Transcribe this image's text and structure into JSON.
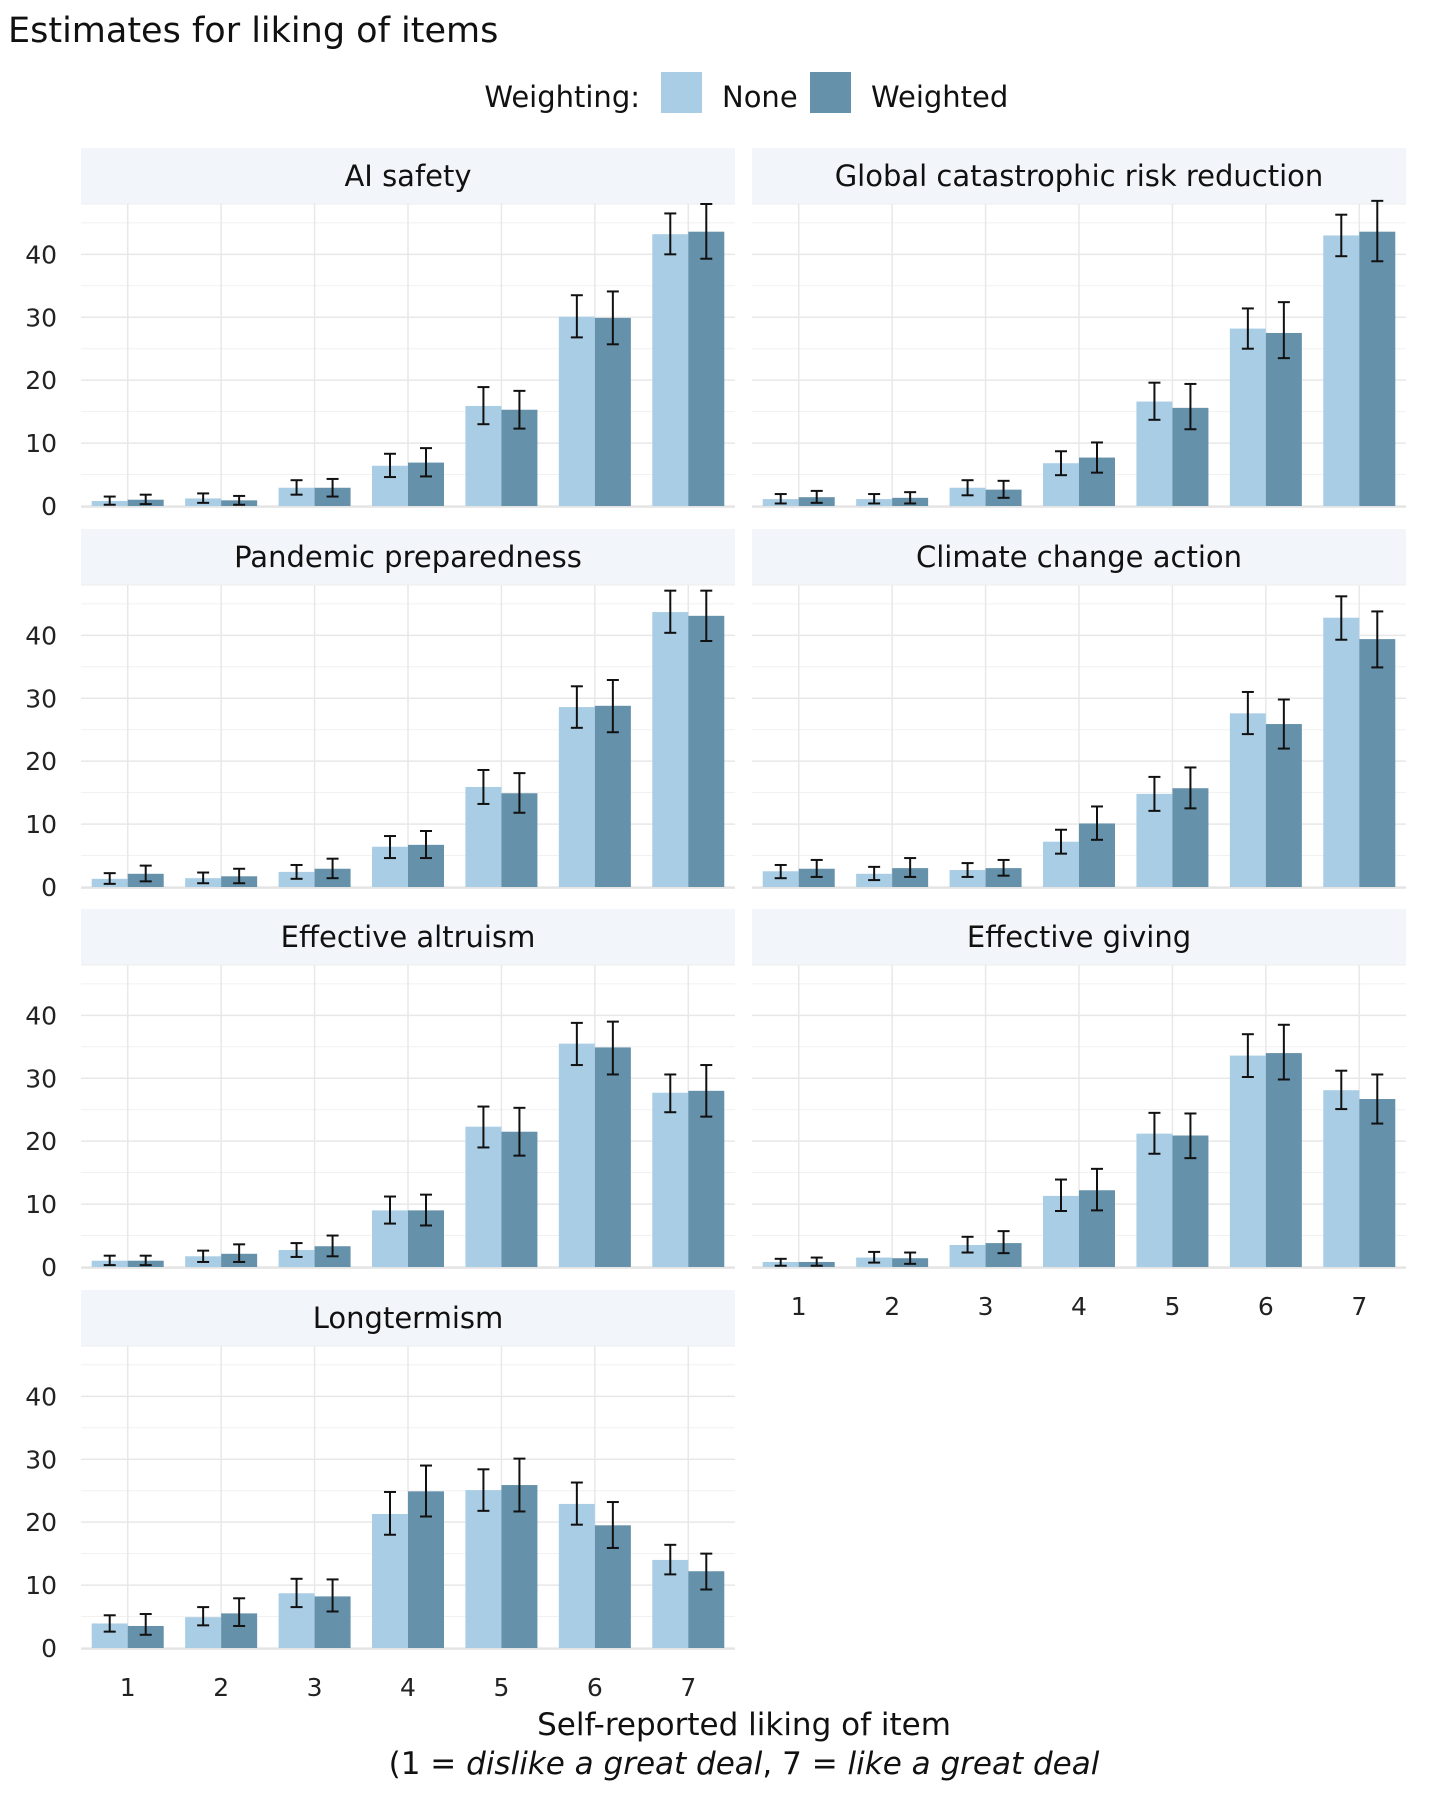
{
  "chart_data": {
    "type": "bar",
    "title": "Estimates for liking of items",
    "legend": {
      "title": "Weighting:",
      "position": "top-center",
      "entries": [
        {
          "name": "None",
          "color": "#a9cde4"
        },
        {
          "name": "Weighted",
          "color": "#6591ab"
        }
      ]
    },
    "categories": [
      "1",
      "2",
      "3",
      "4",
      "5",
      "6",
      "7"
    ],
    "ylim": [
      0,
      48
    ],
    "yticks": [
      "0",
      "10",
      "20",
      "30",
      "40"
    ],
    "xlabel": {
      "line1": "Self-reported liking of item",
      "line2_prefix": "(1 = ",
      "line2_italic1": "dislike a great deal",
      "line2_mid": ", 7 = ",
      "line2_italic2": "like a great deal",
      "line2_suffix": ""
    },
    "colors": {
      "none": "#a9cde4",
      "weighted": "#6591ab",
      "strip": "#f2f6fa",
      "grid": "#e8e8e8",
      "errorbar": "#111111"
    },
    "panels": [
      {
        "title": "AI safety",
        "series": [
          {
            "name": "None",
            "values": [
              0.8,
              1.2,
              2.9,
              6.4,
              15.9,
              30.1,
              43.2
            ],
            "lower": [
              0.2,
              0.5,
              1.8,
              4.6,
              13.0,
              26.8,
              40.0
            ],
            "upper": [
              1.5,
              2.0,
              4.1,
              8.3,
              18.9,
              33.5,
              46.5
            ]
          },
          {
            "name": "Weighted",
            "values": [
              1.0,
              0.9,
              2.9,
              6.9,
              15.3,
              29.9,
              43.6
            ],
            "lower": [
              0.3,
              0.2,
              1.5,
              4.7,
              12.3,
              25.7,
              39.3
            ],
            "upper": [
              1.8,
              1.6,
              4.3,
              9.2,
              18.3,
              34.1,
              48.0
            ]
          }
        ]
      },
      {
        "title": "Global catastrophic risk reduction",
        "series": [
          {
            "name": "None",
            "values": [
              1.1,
              1.1,
              2.9,
              6.8,
              16.6,
              28.2,
              43.0
            ],
            "lower": [
              0.4,
              0.4,
              1.7,
              4.9,
              13.7,
              25.0,
              39.7
            ],
            "upper": [
              1.9,
              1.9,
              4.1,
              8.7,
              19.6,
              31.4,
              46.3
            ]
          },
          {
            "name": "Weighted",
            "values": [
              1.4,
              1.3,
              2.6,
              7.7,
              15.6,
              27.5,
              43.6
            ],
            "lower": [
              0.5,
              0.4,
              1.3,
              5.3,
              12.2,
              23.5,
              38.9
            ],
            "upper": [
              2.4,
              2.2,
              4.0,
              10.1,
              19.4,
              32.4,
              48.5
            ]
          }
        ]
      },
      {
        "title": "Pandemic preparedness",
        "series": [
          {
            "name": "None",
            "values": [
              1.3,
              1.4,
              2.4,
              6.4,
              15.9,
              28.6,
              43.7
            ],
            "lower": [
              0.5,
              0.6,
              1.3,
              4.6,
              13.2,
              25.3,
              40.4
            ],
            "upper": [
              2.2,
              2.3,
              3.5,
              8.1,
              18.6,
              31.9,
              47.1
            ]
          },
          {
            "name": "Weighted",
            "values": [
              2.1,
              1.7,
              2.9,
              6.7,
              14.9,
              28.8,
              43.1
            ],
            "lower": [
              0.9,
              0.6,
              1.4,
              4.6,
              11.8,
              24.6,
              39.1
            ],
            "upper": [
              3.4,
              2.9,
              4.5,
              8.9,
              18.1,
              32.9,
              47.1
            ]
          }
        ]
      },
      {
        "title": "Climate change action",
        "series": [
          {
            "name": "None",
            "values": [
              2.5,
              2.1,
              2.7,
              7.2,
              14.8,
              27.6,
              42.8
            ],
            "lower": [
              1.4,
              1.1,
              1.6,
              5.3,
              12.1,
              24.3,
              39.3
            ],
            "upper": [
              3.5,
              3.2,
              3.8,
              9.1,
              17.5,
              31.0,
              46.2
            ]
          },
          {
            "name": "Weighted",
            "values": [
              2.9,
              3.0,
              3.0,
              10.1,
              15.7,
              25.9,
              39.4
            ],
            "lower": [
              1.6,
              1.6,
              1.8,
              7.5,
              12.5,
              22.0,
              34.9
            ],
            "upper": [
              4.3,
              4.6,
              4.3,
              12.8,
              19.0,
              29.8,
              43.8
            ]
          }
        ]
      },
      {
        "title": "Effective altruism",
        "series": [
          {
            "name": "None",
            "values": [
              1.0,
              1.7,
              2.7,
              9.0,
              22.3,
              35.5,
              27.7
            ],
            "lower": [
              0.3,
              0.8,
              1.6,
              6.9,
              19.0,
              32.1,
              24.6
            ],
            "upper": [
              1.8,
              2.6,
              3.8,
              11.2,
              25.5,
              38.8,
              30.6
            ]
          },
          {
            "name": "Weighted",
            "values": [
              1.0,
              2.1,
              3.3,
              9.0,
              21.5,
              34.9,
              28.0
            ],
            "lower": [
              0.3,
              0.8,
              1.7,
              6.6,
              17.7,
              30.6,
              23.9
            ],
            "upper": [
              1.8,
              3.6,
              5.0,
              11.5,
              25.3,
              39.0,
              32.1
            ]
          }
        ]
      },
      {
        "title": "Effective giving",
        "series": [
          {
            "name": "None",
            "values": [
              0.8,
              1.5,
              3.5,
              11.3,
              21.2,
              33.6,
              28.1
            ],
            "lower": [
              0.2,
              0.7,
              2.3,
              8.9,
              18.0,
              30.2,
              25.1
            ],
            "upper": [
              1.3,
              2.4,
              4.8,
              13.9,
              24.5,
              37.0,
              31.2
            ]
          },
          {
            "name": "Weighted",
            "values": [
              0.8,
              1.4,
              3.8,
              12.2,
              20.9,
              34.0,
              26.7
            ],
            "lower": [
              0.2,
              0.5,
              2.2,
              9.0,
              17.3,
              29.8,
              22.8
            ],
            "upper": [
              1.5,
              2.3,
              5.7,
              15.6,
              24.4,
              38.5,
              30.6
            ]
          }
        ]
      },
      {
        "title": "Longtermism",
        "series": [
          {
            "name": "None",
            "values": [
              3.9,
              4.9,
              8.7,
              21.3,
              25.1,
              22.9,
              14.0
            ],
            "lower": [
              2.6,
              3.6,
              6.5,
              18.0,
              21.8,
              19.6,
              11.7
            ],
            "upper": [
              5.2,
              6.5,
              11.0,
              24.8,
              28.4,
              26.3,
              16.4
            ]
          },
          {
            "name": "Weighted",
            "values": [
              3.5,
              5.5,
              8.2,
              24.9,
              25.9,
              19.5,
              12.2
            ],
            "lower": [
              2.1,
              3.5,
              5.8,
              20.9,
              21.7,
              15.9,
              9.3
            ],
            "upper": [
              5.4,
              7.9,
              10.9,
              29.0,
              30.1,
              23.2,
              15.0
            ]
          }
        ]
      }
    ]
  }
}
